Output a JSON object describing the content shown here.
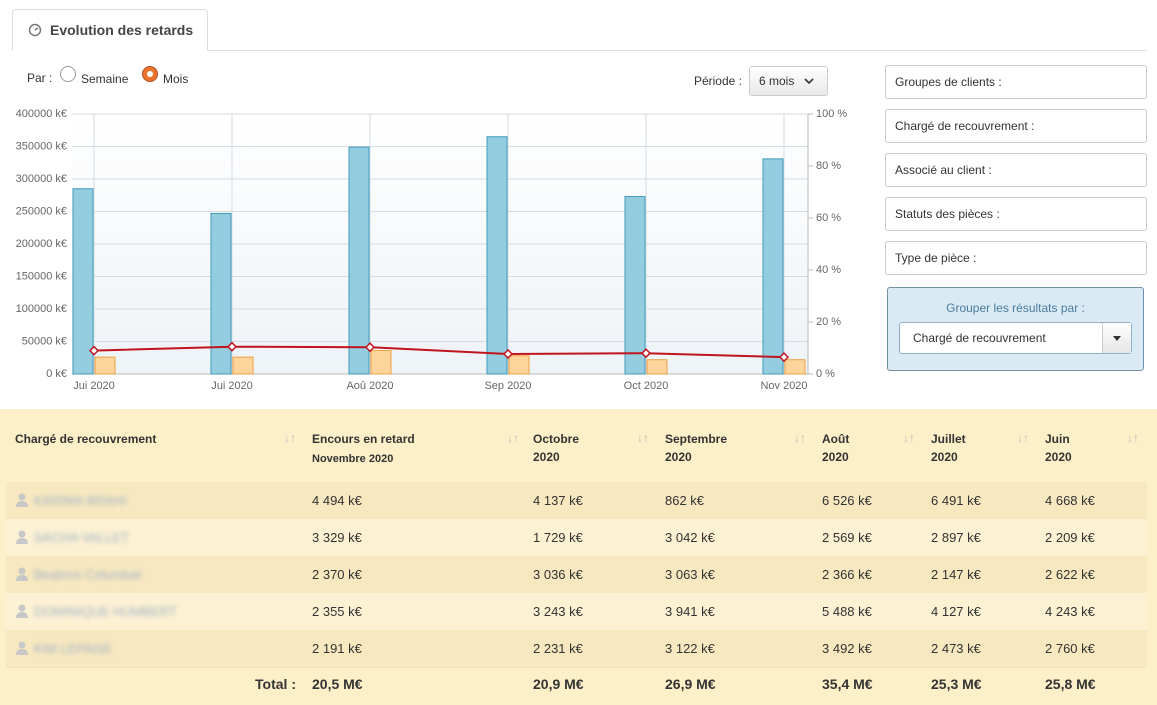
{
  "tab": {
    "title": "Evolution des retards"
  },
  "view": {
    "label": "Par :",
    "options": [
      "Semaine",
      "Mois"
    ],
    "selected_option": 1
  },
  "period": {
    "label": "Période :",
    "value": "6 mois"
  },
  "filters": [
    "Groupes de clients :",
    "Chargé de recouvrement :",
    "Associé au client :",
    "Statuts des pièces :",
    "Type de pièce :"
  ],
  "group_by": {
    "label": "Grouper les résultats par :",
    "value": "Chargé de recouvrement"
  },
  "chart_data": {
    "type": "bar",
    "categories": [
      "Jui 2020",
      "Jui 2020",
      "Aoû 2020",
      "Sep 2020",
      "Oct 2020",
      "Nov 2020"
    ],
    "series": [
      {
        "type": "bar",
        "color": "#94cce0",
        "values": [
          285000,
          247000,
          349000,
          365000,
          273000,
          331000
        ]
      },
      {
        "type": "bar",
        "color": "#fdd59c",
        "values": [
          26000,
          26000,
          36000,
          28000,
          22000,
          22000
        ]
      },
      {
        "type": "line",
        "axis": "y2",
        "color": "#c0141e",
        "values": [
          9,
          10.5,
          10.3,
          7.7,
          8,
          6.5
        ]
      }
    ],
    "ylim": [
      0,
      400000
    ],
    "yticks": [
      {
        "value": 0,
        "label": "0 k€"
      },
      {
        "value": 50000,
        "label": "50000 k€"
      },
      {
        "value": 100000,
        "label": "100000 k€"
      },
      {
        "value": 150000,
        "label": "150000 k€"
      },
      {
        "value": 200000,
        "label": "200000 k€"
      },
      {
        "value": 250000,
        "label": "250000 k€"
      },
      {
        "value": 300000,
        "label": "300000 k€"
      },
      {
        "value": 350000,
        "label": "350000 k€"
      },
      {
        "value": 400000,
        "label": "400000 k€"
      }
    ],
    "y2lim": [
      0,
      100
    ],
    "y2ticks": [
      {
        "value": 0,
        "label": "0 %"
      },
      {
        "value": 20,
        "label": "20 %"
      },
      {
        "value": 40,
        "label": "40 %"
      },
      {
        "value": 60,
        "label": "60 %"
      },
      {
        "value": 80,
        "label": "80 %"
      },
      {
        "value": 100,
        "label": "100 %"
      }
    ],
    "grid": true
  },
  "table": {
    "columns": [
      {
        "title": "Chargé de recouvrement"
      },
      {
        "title": "Encours en retard",
        "subtitle": "Novembre 2020"
      },
      {
        "title": "Octobre",
        "subtitle": "2020"
      },
      {
        "title": "Septembre",
        "subtitle": "2020"
      },
      {
        "title": "Août",
        "subtitle": "2020"
      },
      {
        "title": "Juillet",
        "subtitle": "2020"
      },
      {
        "title": "Juin",
        "subtitle": "2020"
      }
    ],
    "rows": [
      [
        "KARIMA BRAHI",
        "4 494 k€",
        "4 137 k€",
        "862 k€",
        "6 526 k€",
        "6 491 k€",
        "4 668 k€"
      ],
      [
        "SACHA VALLET",
        "3 329 k€",
        "1 729 k€",
        "3 042 k€",
        "2 569 k€",
        "2 897 k€",
        "2 209 k€"
      ],
      [
        "Beatrice Columbat",
        "2 370 k€",
        "3 036 k€",
        "3 063 k€",
        "2 366 k€",
        "2 147 k€",
        "2 622 k€"
      ],
      [
        "DOMINIQUE HUMBERT",
        "2 355 k€",
        "3 243 k€",
        "3 941 k€",
        "5 488 k€",
        "4 127 k€",
        "4 243 k€"
      ],
      [
        "KIM LEPAGE",
        "2 191 k€",
        "2 231 k€",
        "3 122 k€",
        "3 492 k€",
        "2 473 k€",
        "2 760 k€"
      ]
    ],
    "total": {
      "label": "Total :",
      "values": [
        "20,5 M€",
        "20,9 M€",
        "26,9 M€",
        "35,4 M€",
        "25,3 M€",
        "25,8 M€"
      ]
    }
  }
}
